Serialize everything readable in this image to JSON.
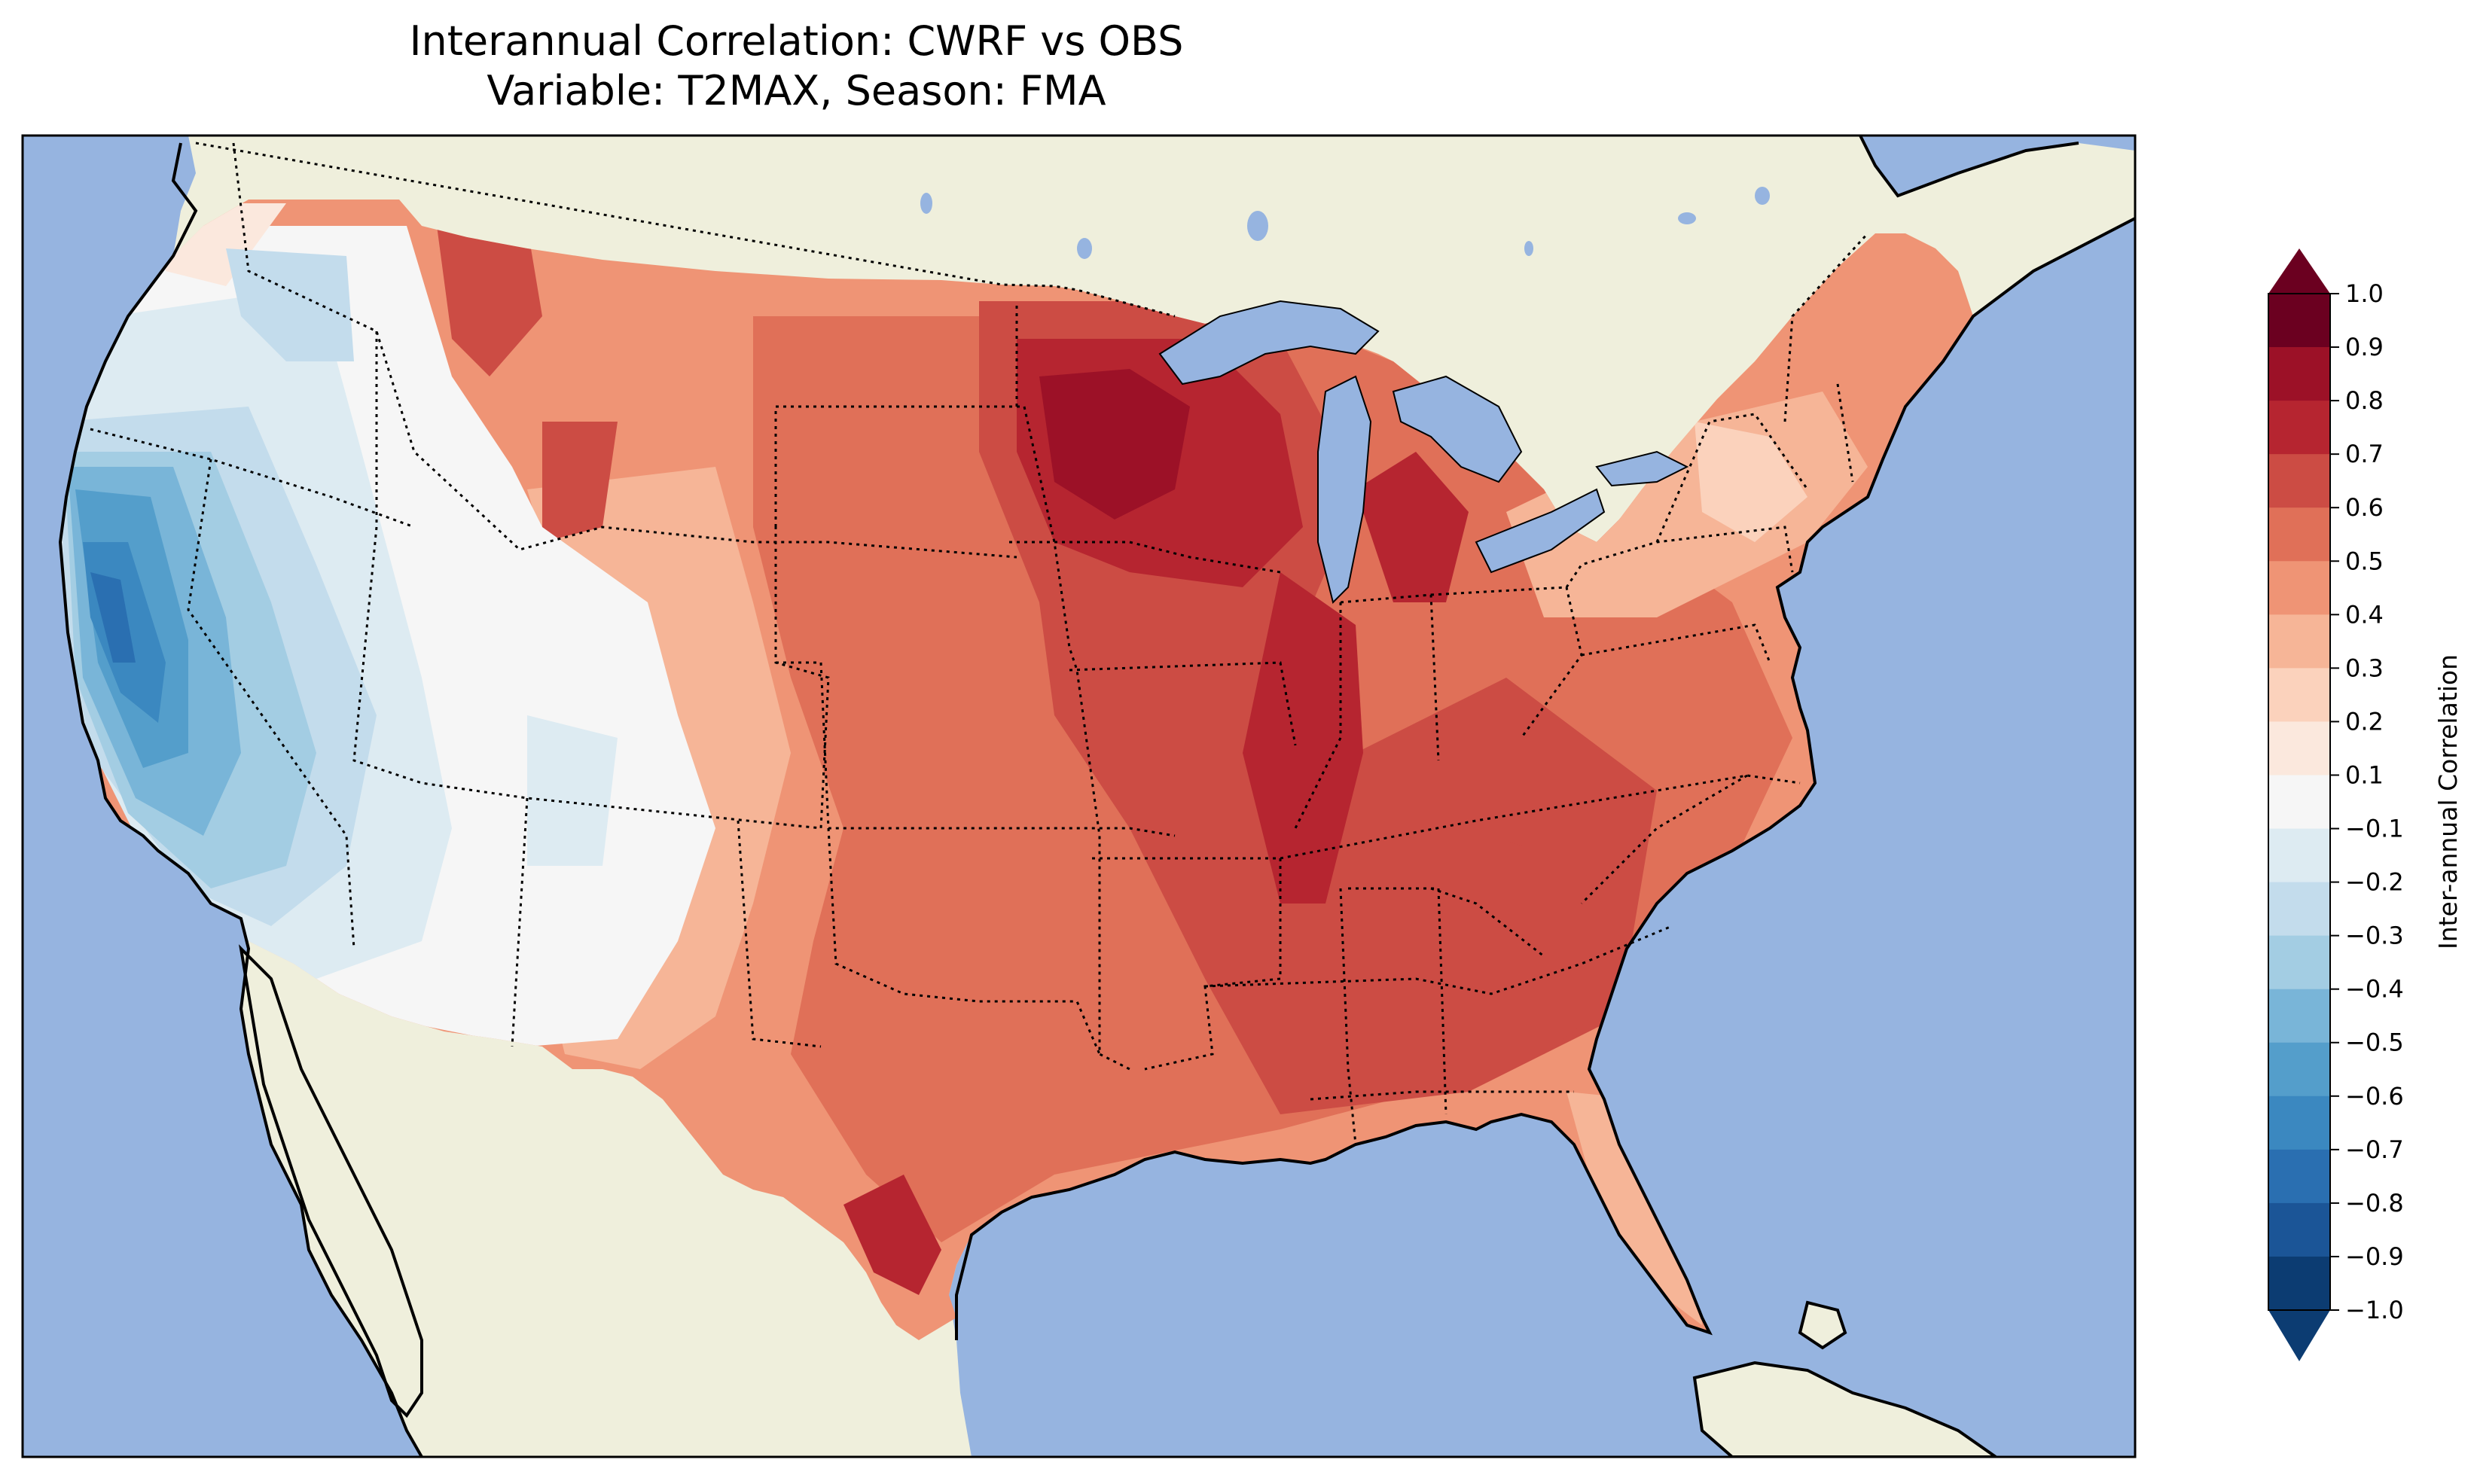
{
  "title": {
    "line1": "Interannual Correlation: CWRF vs OBS",
    "line2": "Variable: T2MAX, Season: FMA"
  },
  "map": {
    "ocean_color": "#96b4e0",
    "land_color": "#efefdc",
    "lake_color": "#96b4e0",
    "coastline_color": "#000000",
    "border_style": "dotted"
  },
  "colorbar": {
    "label": "Inter-annual Correlation",
    "tick_labels": [
      "1.0",
      "0.9",
      "0.8",
      "0.7",
      "0.6",
      "0.5",
      "0.4",
      "0.3",
      "0.2",
      "0.1",
      "−0.1",
      "−0.2",
      "−0.3",
      "−0.4",
      "−0.5",
      "−0.6",
      "−0.7",
      "−0.8",
      "−0.9",
      "−1.0"
    ],
    "colors": [
      "#6b0020",
      "#9c1127",
      "#b62530",
      "#cc4c44",
      "#e07058",
      "#ef9475",
      "#f6b597",
      "#fbd2bc",
      "#fbe8dd",
      "#f6f6f6",
      "#ddebf2",
      "#c3dcec",
      "#a3cde3",
      "#79b5d8",
      "#549ecb",
      "#3b88c0",
      "#2a6fb1",
      "#1b5597",
      "#0c3c72"
    ],
    "over_color": "#6b0020",
    "under_color": "#0c3c72",
    "extend": "both"
  }
}
